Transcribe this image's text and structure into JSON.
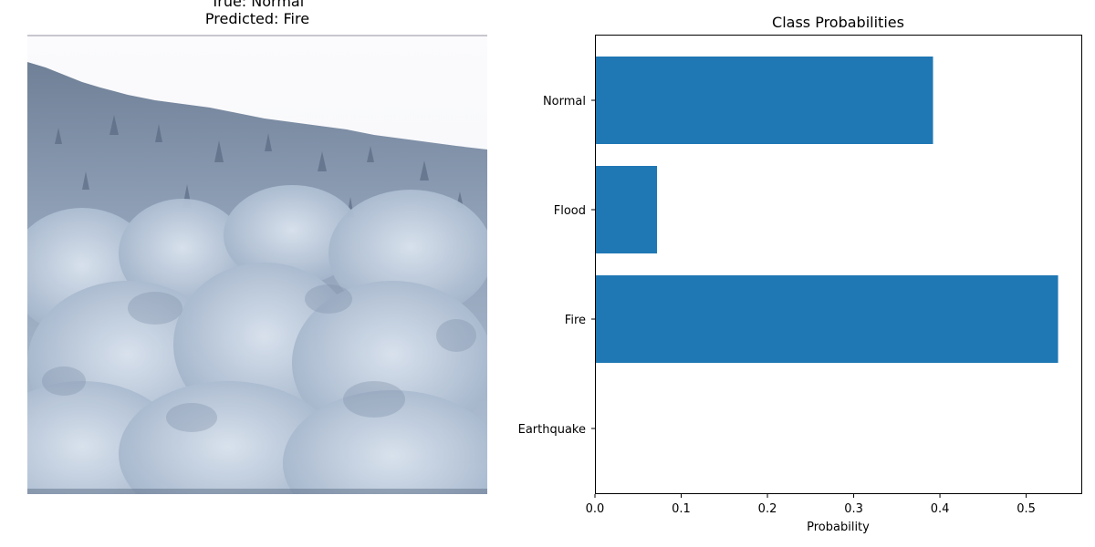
{
  "image_panel": {
    "title_line1": "True: Normal",
    "title_line2": "Predicted: Fire",
    "image_subject": "snow-covered forest on hillside under pale sky"
  },
  "chart_data": {
    "type": "bar",
    "orientation": "horizontal",
    "title": "Class Probabilities",
    "xlabel": "Probability",
    "ylabel": "",
    "categories": [
      "Earthquake",
      "Fire",
      "Flood",
      "Normal"
    ],
    "values": [
      0.0,
      0.537,
      0.072,
      0.392
    ],
    "xlim": [
      0,
      0.565
    ],
    "xticks": [
      0.0,
      0.1,
      0.2,
      0.3,
      0.4,
      0.5
    ],
    "xtick_labels": [
      "0.0",
      "0.1",
      "0.2",
      "0.3",
      "0.4",
      "0.5"
    ],
    "bar_color": "#1f77b4",
    "grid": false
  }
}
